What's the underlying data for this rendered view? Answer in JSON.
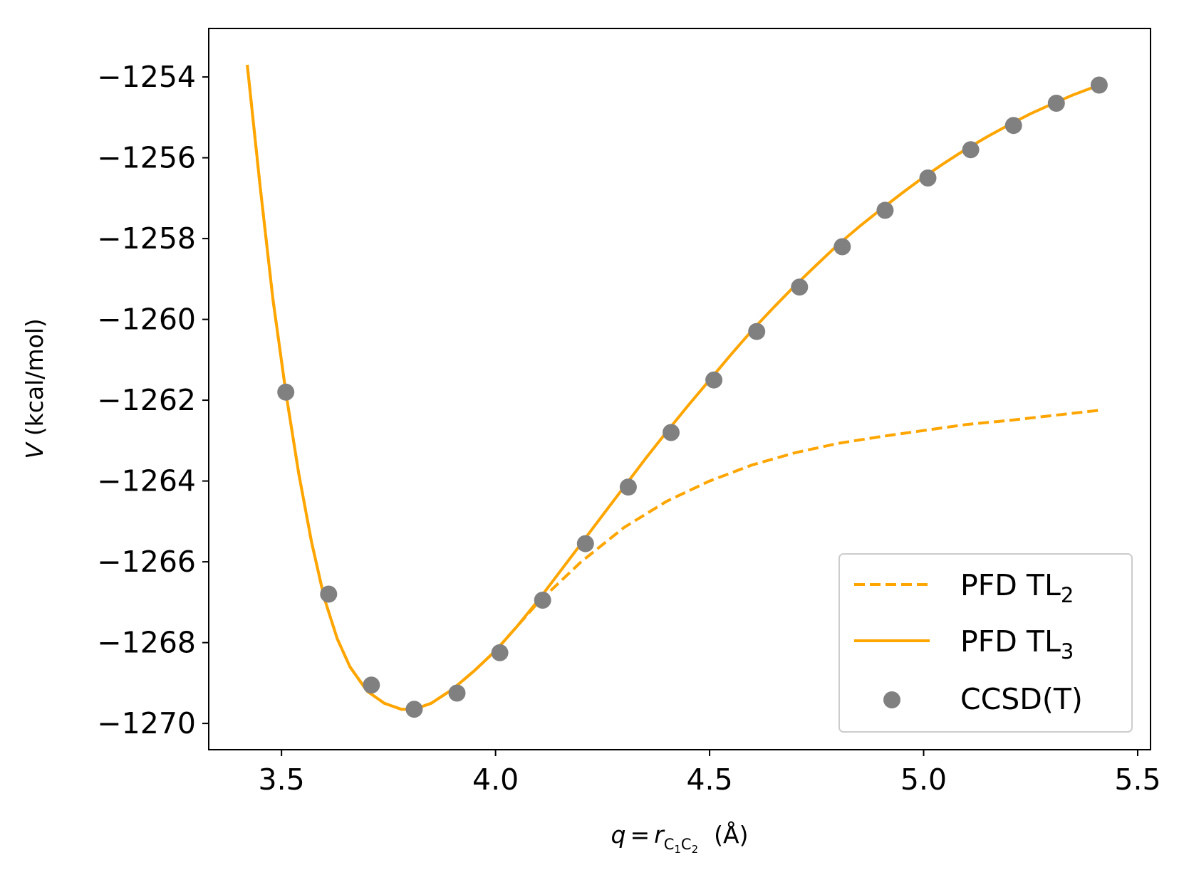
{
  "chart_data": {
    "type": "line",
    "title": "",
    "xlabel": {
      "var": "q",
      "eq": "=",
      "r": "r",
      "sub1": "C",
      "sub1n": "1",
      "sub2": "C",
      "sub2n": "2",
      "unit": "(Å)"
    },
    "ylabel": {
      "var": "V",
      "unit": "(kcal/mol)"
    },
    "xlim": [
      3.33,
      5.53
    ],
    "ylim": [
      -1270.65,
      -1252.8
    ],
    "xticks": [
      3.5,
      4.0,
      4.5,
      5.0,
      5.5
    ],
    "xtick_labels": [
      "3.5",
      "4.0",
      "4.5",
      "5.0",
      "5.5"
    ],
    "yticks": [
      -1254,
      -1256,
      -1258,
      -1260,
      -1262,
      -1264,
      -1266,
      -1268,
      -1270
    ],
    "ytick_labels": [
      "−1254",
      "−1256",
      "−1258",
      "−1260",
      "−1262",
      "−1264",
      "−1266",
      "−1268",
      "−1270"
    ],
    "grid": false,
    "legend_position": "lower right",
    "colors": {
      "pfd": "#FFA500",
      "ccsd": "#808080",
      "axis": "#000000"
    },
    "series": [
      {
        "name": "PFD TL2",
        "label_main": "PFD TL",
        "label_sub": "2",
        "style": "dashed",
        "x": [
          3.42,
          3.45,
          3.48,
          3.51,
          3.54,
          3.57,
          3.6,
          3.63,
          3.66,
          3.7,
          3.74,
          3.78,
          3.81,
          3.85,
          3.9,
          3.95,
          4.0,
          4.1,
          4.2,
          4.3,
          4.4,
          4.5,
          4.6,
          4.7,
          4.8,
          4.9,
          5.0,
          5.1,
          5.2,
          5.3,
          5.41
        ],
        "y": [
          -1253.7,
          -1256.7,
          -1259.5,
          -1261.8,
          -1263.8,
          -1265.5,
          -1266.9,
          -1267.9,
          -1268.6,
          -1269.2,
          -1269.5,
          -1269.65,
          -1269.65,
          -1269.5,
          -1269.15,
          -1268.7,
          -1268.2,
          -1267.0,
          -1266.0,
          -1265.15,
          -1264.5,
          -1264.0,
          -1263.6,
          -1263.3,
          -1263.07,
          -1262.9,
          -1262.75,
          -1262.6,
          -1262.5,
          -1262.38,
          -1262.25
        ]
      },
      {
        "name": "PFD TL3",
        "label_main": "PFD TL",
        "label_sub": "3",
        "style": "solid",
        "x": [
          3.42,
          3.45,
          3.48,
          3.51,
          3.54,
          3.57,
          3.6,
          3.63,
          3.66,
          3.7,
          3.74,
          3.78,
          3.81,
          3.85,
          3.9,
          3.95,
          4.0,
          4.05,
          4.1,
          4.15,
          4.2,
          4.25,
          4.3,
          4.35,
          4.4,
          4.45,
          4.5,
          4.55,
          4.6,
          4.65,
          4.7,
          4.75,
          4.8,
          4.85,
          4.9,
          4.95,
          5.0,
          5.05,
          5.1,
          5.15,
          5.2,
          5.25,
          5.3,
          5.35,
          5.41
        ],
        "y": [
          -1253.7,
          -1256.7,
          -1259.5,
          -1261.8,
          -1263.8,
          -1265.5,
          -1266.9,
          -1267.9,
          -1268.6,
          -1269.2,
          -1269.5,
          -1269.65,
          -1269.65,
          -1269.5,
          -1269.15,
          -1268.7,
          -1268.2,
          -1267.6,
          -1266.95,
          -1266.25,
          -1265.55,
          -1264.85,
          -1264.15,
          -1263.45,
          -1262.78,
          -1262.13,
          -1261.5,
          -1260.87,
          -1260.26,
          -1259.7,
          -1259.16,
          -1258.65,
          -1258.15,
          -1257.7,
          -1257.28,
          -1256.87,
          -1256.48,
          -1256.12,
          -1255.78,
          -1255.47,
          -1255.18,
          -1254.91,
          -1254.67,
          -1254.44,
          -1254.2
        ]
      },
      {
        "name": "CCSD(T)",
        "label_main": "CCSD(T)",
        "label_sub": "",
        "style": "scatter",
        "x": [
          3.51,
          3.61,
          3.71,
          3.81,
          3.91,
          4.01,
          4.11,
          4.21,
          4.31,
          4.41,
          4.51,
          4.61,
          4.71,
          4.81,
          4.91,
          5.01,
          5.11,
          5.21,
          5.31,
          5.41
        ],
        "y": [
          -1261.8,
          -1266.8,
          -1269.05,
          -1269.65,
          -1269.25,
          -1268.25,
          -1266.95,
          -1265.55,
          -1264.15,
          -1262.8,
          -1261.5,
          -1260.3,
          -1259.2,
          -1258.2,
          -1257.3,
          -1256.5,
          -1255.8,
          -1255.2,
          -1254.65,
          -1254.2
        ]
      }
    ]
  }
}
